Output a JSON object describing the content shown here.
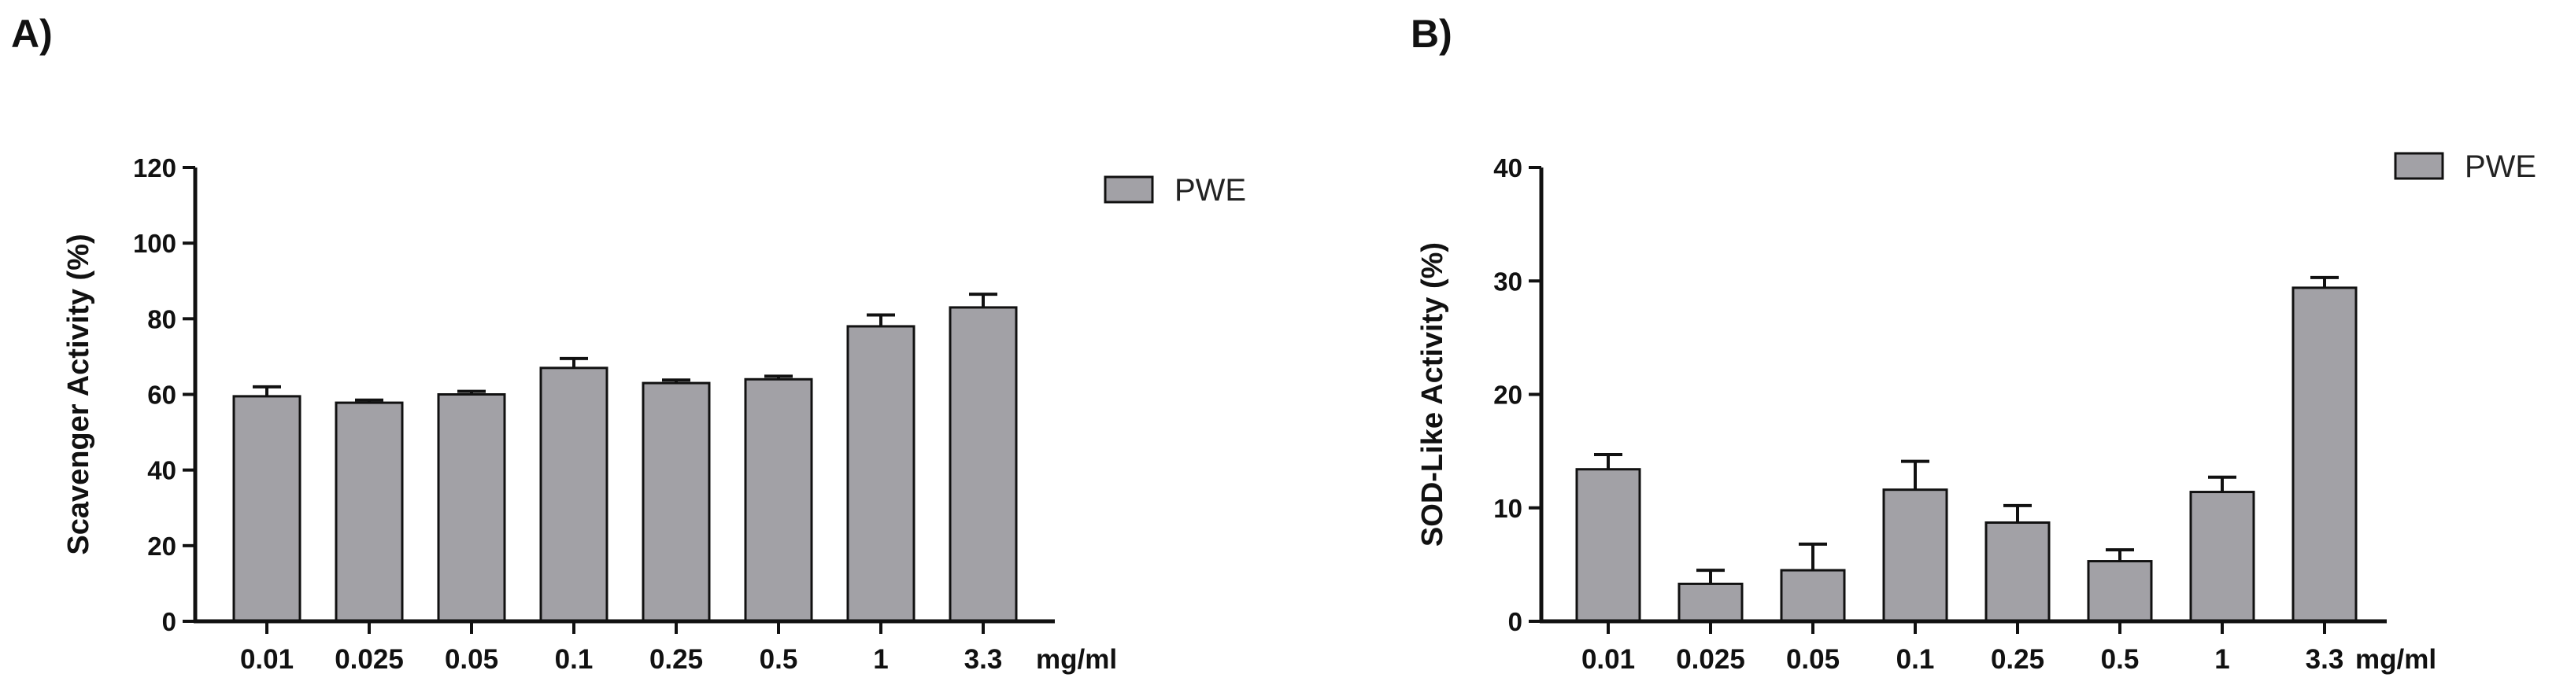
{
  "chart_data": [
    {
      "panel": "A)",
      "type": "bar",
      "title": "",
      "xlabel": "",
      "x_unit": "mg/ml",
      "ylabel": "Scavenger Activity (%)",
      "ylim": [
        0,
        120
      ],
      "yticks": [
        0,
        20,
        40,
        60,
        80,
        100,
        120
      ],
      "categories": [
        "0.01",
        "0.025",
        "0.05",
        "0.1",
        "0.25",
        "0.5",
        "1",
        "3.3"
      ],
      "series": [
        {
          "name": "PWE",
          "color": "#a2a1a6",
          "values": [
            59.5,
            57.8,
            60.0,
            67.0,
            63.0,
            64.0,
            78.0,
            83.0
          ],
          "errors": [
            2.5,
            0.7,
            0.8,
            2.5,
            0.8,
            0.8,
            3.0,
            3.5
          ]
        }
      ],
      "legend_position": "top-right"
    },
    {
      "panel": "B)",
      "type": "bar",
      "title": "",
      "xlabel": "",
      "x_unit": "mg/ml",
      "ylabel": "SOD-Like Activity (%)",
      "ylim": [
        0,
        40
      ],
      "yticks": [
        0,
        10,
        20,
        30,
        40
      ],
      "categories": [
        "0.01",
        "0.025",
        "0.05",
        "0.1",
        "0.25",
        "0.5",
        "1",
        "3.3"
      ],
      "series": [
        {
          "name": "PWE",
          "color": "#a2a1a6",
          "values": [
            13.4,
            3.3,
            4.5,
            11.6,
            8.7,
            5.3,
            11.4,
            29.4
          ],
          "errors": [
            1.3,
            1.2,
            2.3,
            2.5,
            1.5,
            1.0,
            1.3,
            0.9
          ]
        }
      ],
      "legend_position": "top-right"
    }
  ]
}
